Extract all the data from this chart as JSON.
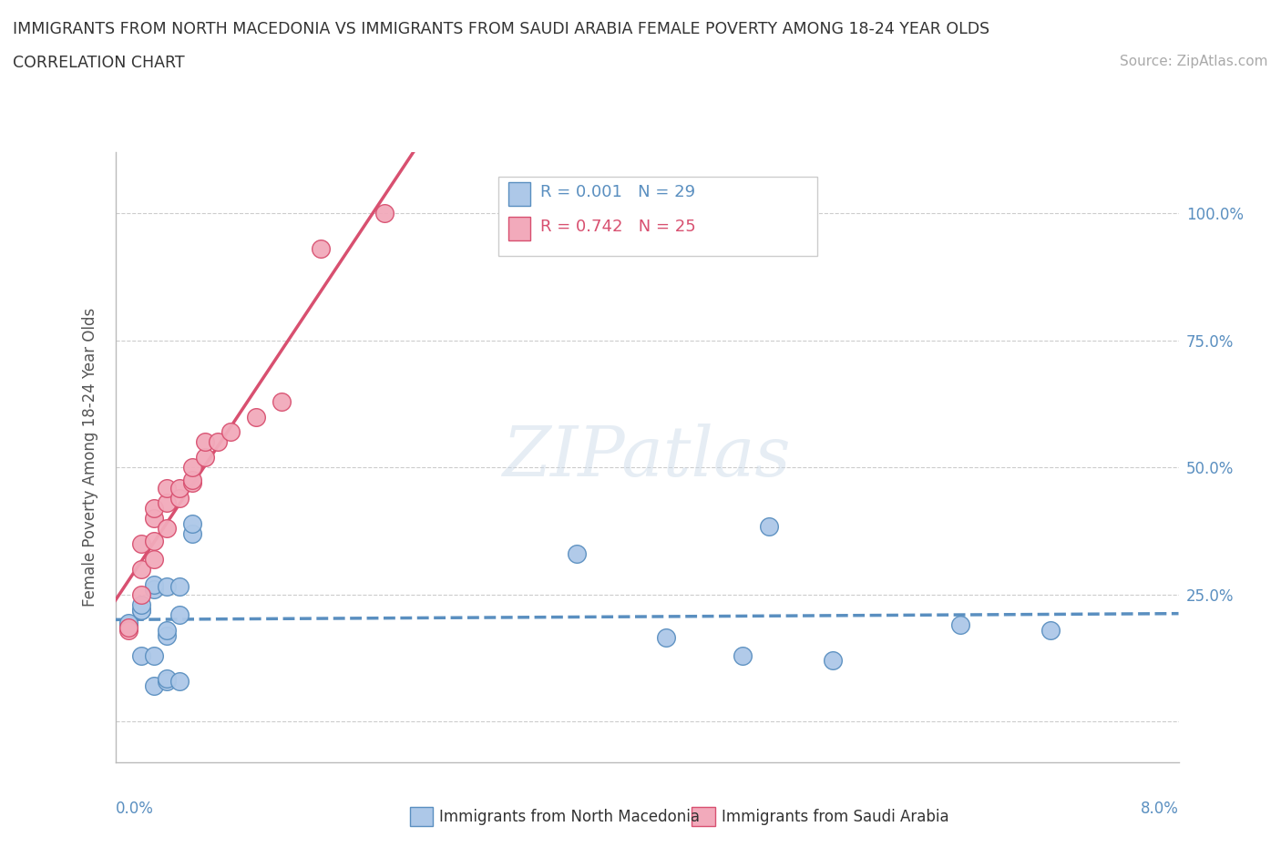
{
  "title_line1": "IMMIGRANTS FROM NORTH MACEDONIA VS IMMIGRANTS FROM SAUDI ARABIA FEMALE POVERTY AMONG 18-24 YEAR OLDS",
  "title_line2": "CORRELATION CHART",
  "source": "Source: ZipAtlas.com",
  "ylabel": "Female Poverty Among 18-24 Year Olds",
  "legend_label1": "Immigrants from North Macedonia",
  "legend_label2": "Immigrants from Saudi Arabia",
  "r1": "R = 0.001",
  "n1": "N = 29",
  "r2": "R = 0.742",
  "n2": "N = 25",
  "color_blue": "#adc8e8",
  "color_pink": "#f2aabb",
  "color_blue_dark": "#5a8fc0",
  "color_pink_dark": "#d85070",
  "yticks": [
    0.0,
    0.25,
    0.5,
    0.75,
    1.0
  ],
  "ytick_labels_right": [
    "",
    "25.0%",
    "50.0%",
    "75.0%",
    "100.0%"
  ],
  "xlim": [
    -0.001,
    0.082
  ],
  "ylim": [
    -0.08,
    1.12
  ],
  "watermark": "ZIPatlas",
  "nm_x": [
    0.0,
    0.0,
    0.0,
    0.0,
    0.001,
    0.001,
    0.001,
    0.001,
    0.002,
    0.002,
    0.002,
    0.002,
    0.003,
    0.003,
    0.003,
    0.003,
    0.003,
    0.004,
    0.004,
    0.004,
    0.005,
    0.005,
    0.035,
    0.042,
    0.048,
    0.05,
    0.055,
    0.065,
    0.072
  ],
  "nm_y": [
    0.185,
    0.19,
    0.19,
    0.195,
    0.13,
    0.22,
    0.22,
    0.23,
    0.07,
    0.13,
    0.26,
    0.27,
    0.08,
    0.085,
    0.17,
    0.18,
    0.265,
    0.08,
    0.21,
    0.265,
    0.37,
    0.39,
    0.33,
    0.165,
    0.13,
    0.385,
    0.12,
    0.19,
    0.18
  ],
  "sa_x": [
    0.0,
    0.0,
    0.001,
    0.001,
    0.001,
    0.002,
    0.002,
    0.002,
    0.002,
    0.003,
    0.003,
    0.003,
    0.004,
    0.004,
    0.005,
    0.005,
    0.005,
    0.006,
    0.006,
    0.007,
    0.008,
    0.01,
    0.012,
    0.015,
    0.02
  ],
  "sa_y": [
    0.18,
    0.185,
    0.25,
    0.3,
    0.35,
    0.32,
    0.355,
    0.4,
    0.42,
    0.38,
    0.43,
    0.46,
    0.44,
    0.46,
    0.47,
    0.475,
    0.5,
    0.52,
    0.55,
    0.55,
    0.57,
    0.6,
    0.63,
    0.93,
    1.0
  ]
}
